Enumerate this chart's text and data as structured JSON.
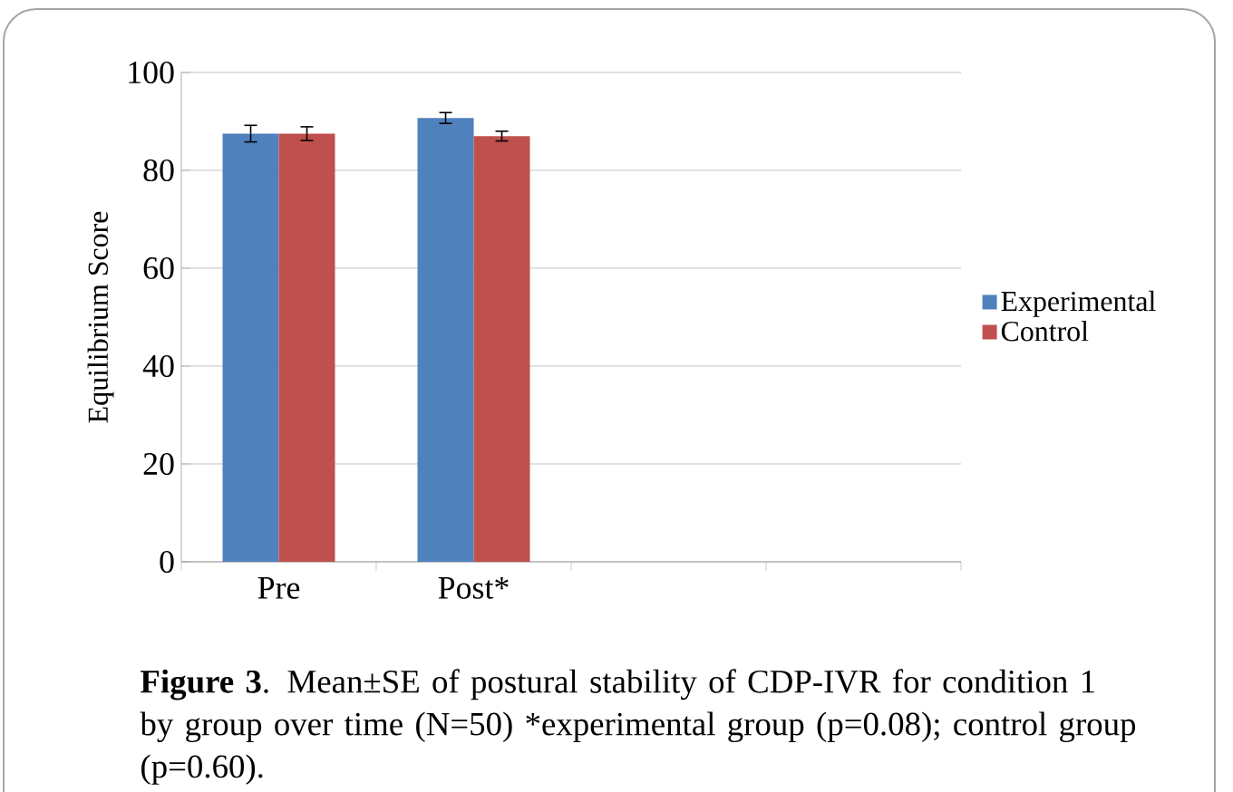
{
  "chart_data": {
    "type": "bar",
    "ylabel": "Equilibrium Score",
    "categories": [
      "Pre",
      "Post*",
      null,
      null
    ],
    "series": [
      {
        "name": "Experimental",
        "color": "#4f81bd",
        "values": [
          87.5,
          90.7,
          null,
          null
        ],
        "errors": [
          1.7,
          1.1,
          null,
          null
        ]
      },
      {
        "name": "Control",
        "color": "#c0504d",
        "values": [
          87.5,
          87.0,
          null,
          null
        ],
        "errors": [
          1.4,
          1.0,
          null,
          null
        ]
      }
    ],
    "ylim": [
      0,
      100
    ],
    "yticks": [
      0,
      20,
      40,
      60,
      80,
      100
    ],
    "grid": "y",
    "legend": "right",
    "annotations": [
      "**Figure 3**. Mean±SE of postural stability of CDP-IVR for condition 1 by group over time (N=50) *experimental group (p=0.08); control group (p=0.60)."
    ]
  }
}
